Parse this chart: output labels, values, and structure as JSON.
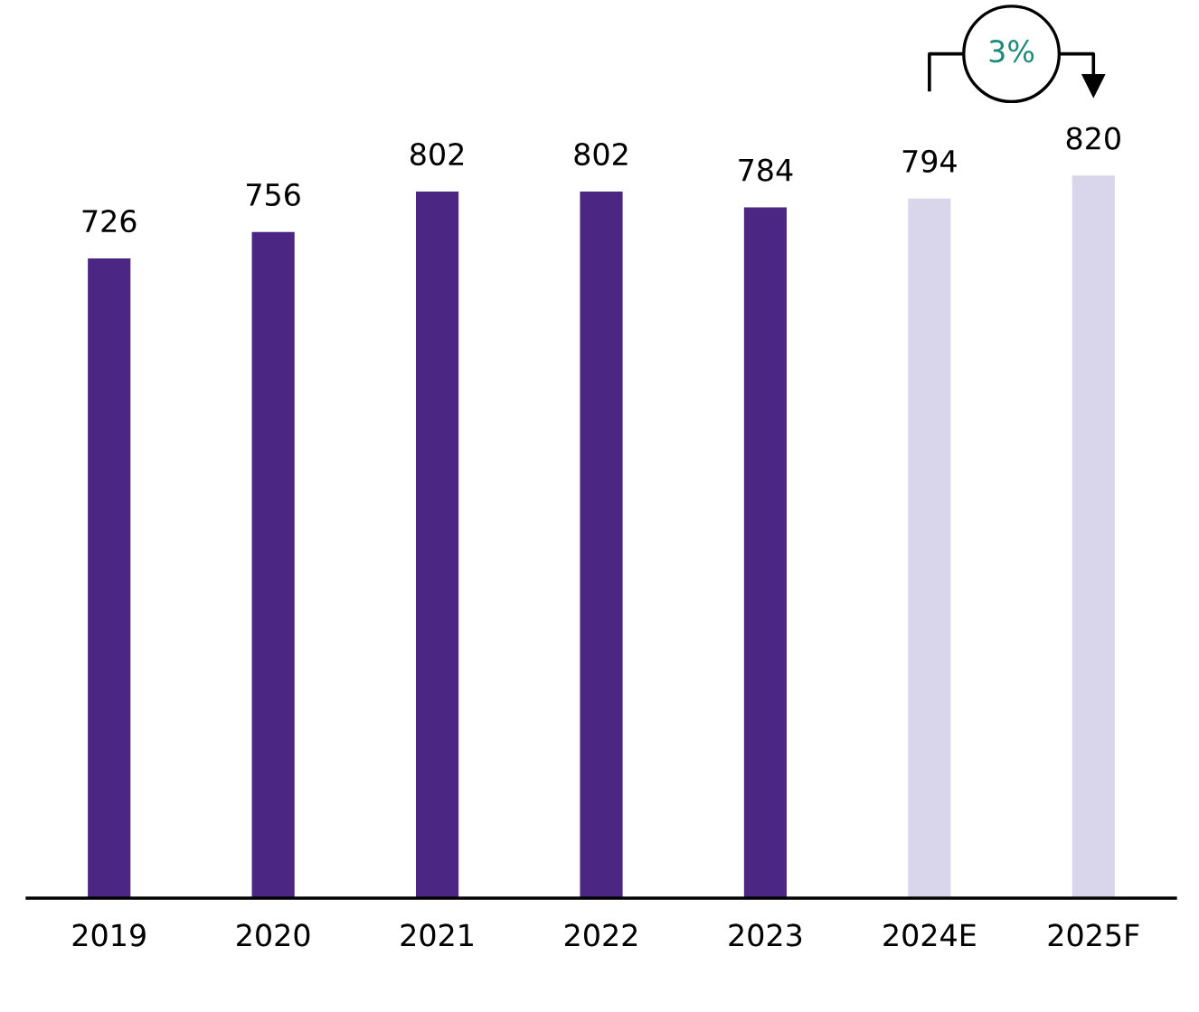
{
  "chart_data": {
    "type": "bar",
    "categories": [
      "2019",
      "2020",
      "2021",
      "2022",
      "2023",
      "2024E",
      "2025F"
    ],
    "values": [
      726,
      756,
      802,
      802,
      784,
      794,
      820
    ],
    "colors": [
      "#4b2683",
      "#4b2683",
      "#4b2683",
      "#4b2683",
      "#4b2683",
      "#d9d5ea",
      "#d9d5ea"
    ],
    "data_labels": true,
    "grid": false,
    "legend": false,
    "annotations": [
      "3%"
    ]
  }
}
